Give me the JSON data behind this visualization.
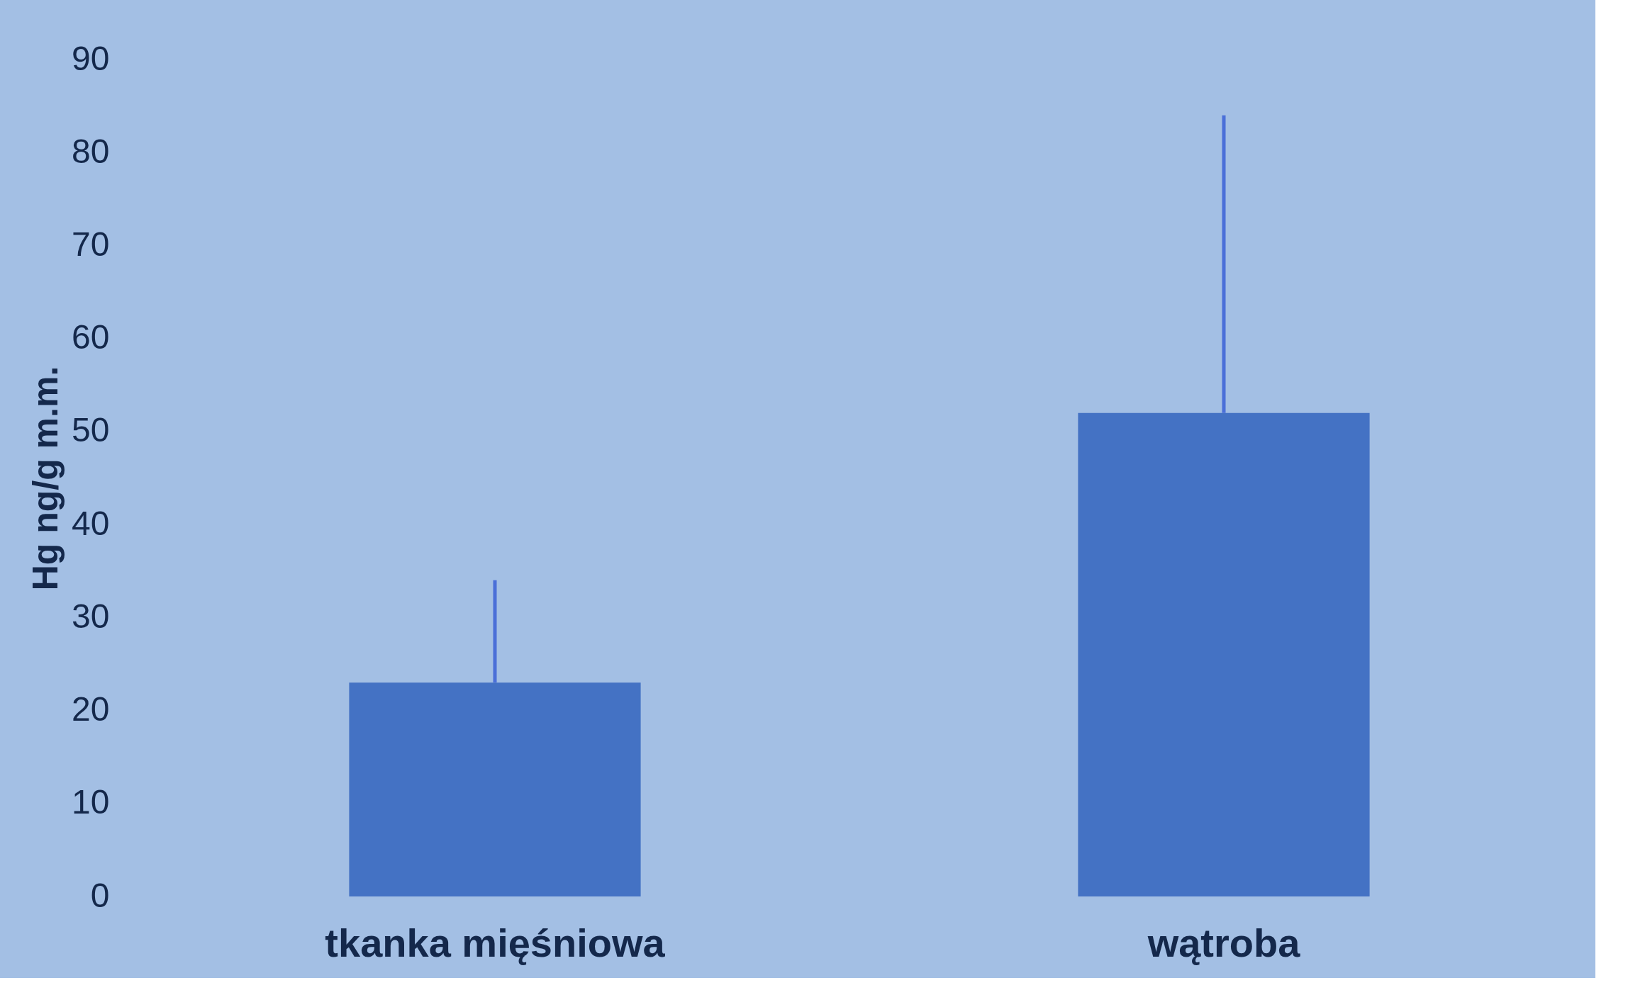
{
  "chart_data": {
    "type": "bar",
    "ylabel": "Hg ng/g m.m.",
    "categories": [
      "tkanka mięśniowa",
      "wątroba"
    ],
    "values": [
      23,
      52
    ],
    "color": "#4472c4",
    "errors": [
      [
        23,
        34
      ],
      [
        52,
        84
      ]
    ],
    "ylim": [
      0,
      90
    ],
    "yticks": [
      0,
      10,
      20,
      30,
      40,
      50,
      60,
      70,
      80,
      90
    ],
    "grid": false
  }
}
